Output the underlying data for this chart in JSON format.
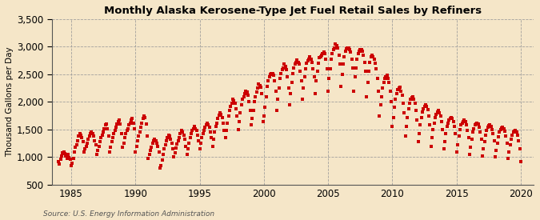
{
  "title": "Monthly Alaska Kerosene-Type Jet Fuel Retail Sales by Refiners",
  "ylabel": "Thousand Gallons per Day",
  "source": "Source: U.S. Energy Information Administration",
  "background_color": "#f5e6c8",
  "plot_bg_color": "#f5e6c8",
  "marker_color": "#cc0000",
  "marker": "s",
  "marker_size": 3.5,
  "xlim": [
    1983.5,
    2021.0
  ],
  "ylim": [
    500,
    3500
  ],
  "yticks": [
    500,
    1000,
    1500,
    2000,
    2500,
    3000,
    3500
  ],
  "ytick_labels": [
    "500",
    "1,000",
    "1,500",
    "2,000",
    "2,500",
    "3,000",
    "3,500"
  ],
  "xticks": [
    1985,
    1990,
    1995,
    2000,
    2005,
    2010,
    2015,
    2020
  ],
  "data": [
    [
      1984.0,
      920
    ],
    [
      1984.08,
      870
    ],
    [
      1984.17,
      960
    ],
    [
      1984.25,
      1020
    ],
    [
      1984.33,
      1080
    ],
    [
      1984.42,
      1100
    ],
    [
      1984.5,
      1060
    ],
    [
      1984.58,
      1020
    ],
    [
      1984.67,
      980
    ],
    [
      1984.75,
      1050
    ],
    [
      1984.83,
      990
    ],
    [
      1984.92,
      960
    ],
    [
      1985.0,
      840
    ],
    [
      1985.08,
      890
    ],
    [
      1985.17,
      980
    ],
    [
      1985.25,
      1100
    ],
    [
      1985.33,
      1180
    ],
    [
      1985.42,
      1220
    ],
    [
      1985.5,
      1300
    ],
    [
      1985.58,
      1380
    ],
    [
      1985.67,
      1420
    ],
    [
      1985.75,
      1400
    ],
    [
      1985.83,
      1350
    ],
    [
      1985.92,
      1280
    ],
    [
      1986.0,
      1100
    ],
    [
      1986.08,
      1150
    ],
    [
      1986.17,
      1200
    ],
    [
      1986.25,
      1250
    ],
    [
      1986.33,
      1320
    ],
    [
      1986.42,
      1380
    ],
    [
      1986.5,
      1430
    ],
    [
      1986.58,
      1460
    ],
    [
      1986.67,
      1420
    ],
    [
      1986.75,
      1380
    ],
    [
      1986.83,
      1300
    ],
    [
      1986.92,
      1220
    ],
    [
      1987.0,
      1050
    ],
    [
      1987.08,
      1120
    ],
    [
      1987.17,
      1200
    ],
    [
      1987.25,
      1280
    ],
    [
      1987.33,
      1350
    ],
    [
      1987.42,
      1400
    ],
    [
      1987.5,
      1450
    ],
    [
      1987.58,
      1520
    ],
    [
      1987.67,
      1580
    ],
    [
      1987.75,
      1600
    ],
    [
      1987.83,
      1520
    ],
    [
      1987.92,
      1380
    ],
    [
      1988.0,
      1100
    ],
    [
      1988.08,
      1180
    ],
    [
      1988.17,
      1280
    ],
    [
      1988.25,
      1350
    ],
    [
      1988.33,
      1420
    ],
    [
      1988.42,
      1480
    ],
    [
      1988.5,
      1540
    ],
    [
      1988.58,
      1600
    ],
    [
      1988.67,
      1650
    ],
    [
      1988.75,
      1680
    ],
    [
      1988.83,
      1600
    ],
    [
      1988.92,
      1420
    ],
    [
      1989.0,
      1180
    ],
    [
      1989.08,
      1250
    ],
    [
      1989.17,
      1350
    ],
    [
      1989.25,
      1420
    ],
    [
      1989.33,
      1480
    ],
    [
      1989.42,
      1520
    ],
    [
      1989.5,
      1580
    ],
    [
      1989.58,
      1620
    ],
    [
      1989.67,
      1680
    ],
    [
      1989.75,
      1700
    ],
    [
      1989.83,
      1620
    ],
    [
      1989.92,
      1520
    ],
    [
      1990.0,
      1100
    ],
    [
      1990.08,
      1200
    ],
    [
      1990.17,
      1300
    ],
    [
      1990.25,
      1380
    ],
    [
      1990.33,
      1460
    ],
    [
      1990.42,
      1540
    ],
    [
      1990.5,
      1620
    ],
    [
      1990.58,
      1700
    ],
    [
      1990.67,
      1750
    ],
    [
      1990.75,
      1720
    ],
    [
      1990.83,
      1600
    ],
    [
      1990.92,
      1380
    ],
    [
      1991.0,
      980
    ],
    [
      1991.08,
      1050
    ],
    [
      1991.17,
      1120
    ],
    [
      1991.25,
      1180
    ],
    [
      1991.33,
      1250
    ],
    [
      1991.42,
      1300
    ],
    [
      1991.5,
      1320
    ],
    [
      1991.58,
      1300
    ],
    [
      1991.67,
      1250
    ],
    [
      1991.75,
      1200
    ],
    [
      1991.83,
      1100
    ],
    [
      1991.92,
      800
    ],
    [
      1992.0,
      850
    ],
    [
      1992.08,
      950
    ],
    [
      1992.17,
      1050
    ],
    [
      1992.25,
      1150
    ],
    [
      1992.33,
      1220
    ],
    [
      1992.42,
      1300
    ],
    [
      1992.5,
      1350
    ],
    [
      1992.58,
      1400
    ],
    [
      1992.67,
      1380
    ],
    [
      1992.75,
      1320
    ],
    [
      1992.83,
      1250
    ],
    [
      1992.92,
      1150
    ],
    [
      1993.0,
      1000
    ],
    [
      1993.08,
      1080
    ],
    [
      1993.17,
      1160
    ],
    [
      1993.25,
      1240
    ],
    [
      1993.33,
      1300
    ],
    [
      1993.42,
      1360
    ],
    [
      1993.5,
      1420
    ],
    [
      1993.58,
      1480
    ],
    [
      1993.67,
      1450
    ],
    [
      1993.75,
      1400
    ],
    [
      1993.83,
      1320
    ],
    [
      1993.92,
      1200
    ],
    [
      1994.0,
      1050
    ],
    [
      1994.08,
      1150
    ],
    [
      1994.17,
      1250
    ],
    [
      1994.25,
      1350
    ],
    [
      1994.33,
      1420
    ],
    [
      1994.42,
      1480
    ],
    [
      1994.5,
      1520
    ],
    [
      1994.58,
      1560
    ],
    [
      1994.67,
      1520
    ],
    [
      1994.75,
      1480
    ],
    [
      1994.83,
      1400
    ],
    [
      1994.92,
      1300
    ],
    [
      1995.0,
      1150
    ],
    [
      1995.08,
      1250
    ],
    [
      1995.17,
      1350
    ],
    [
      1995.25,
      1420
    ],
    [
      1995.33,
      1480
    ],
    [
      1995.42,
      1540
    ],
    [
      1995.5,
      1580
    ],
    [
      1995.58,
      1620
    ],
    [
      1995.67,
      1580
    ],
    [
      1995.75,
      1540
    ],
    [
      1995.83,
      1460
    ],
    [
      1995.92,
      1350
    ],
    [
      1996.0,
      1200
    ],
    [
      1996.08,
      1320
    ],
    [
      1996.17,
      1450
    ],
    [
      1996.25,
      1550
    ],
    [
      1996.33,
      1620
    ],
    [
      1996.42,
      1700
    ],
    [
      1996.5,
      1760
    ],
    [
      1996.58,
      1800
    ],
    [
      1996.67,
      1780
    ],
    [
      1996.75,
      1720
    ],
    [
      1996.83,
      1620
    ],
    [
      1996.92,
      1480
    ],
    [
      1997.0,
      1350
    ],
    [
      1997.08,
      1480
    ],
    [
      1997.17,
      1620
    ],
    [
      1997.25,
      1750
    ],
    [
      1997.33,
      1850
    ],
    [
      1997.42,
      1920
    ],
    [
      1997.5,
      1980
    ],
    [
      1997.58,
      2050
    ],
    [
      1997.67,
      2020
    ],
    [
      1997.75,
      1980
    ],
    [
      1997.83,
      1880
    ],
    [
      1997.92,
      1750
    ],
    [
      1998.0,
      1500
    ],
    [
      1998.08,
      1650
    ],
    [
      1998.17,
      1800
    ],
    [
      1998.25,
      1950
    ],
    [
      1998.33,
      2050
    ],
    [
      1998.42,
      2100
    ],
    [
      1998.5,
      2150
    ],
    [
      1998.58,
      2200
    ],
    [
      1998.67,
      2180
    ],
    [
      1998.75,
      2120
    ],
    [
      1998.83,
      2000
    ],
    [
      1998.92,
      1850
    ],
    [
      1999.0,
      1580
    ],
    [
      1999.08,
      1700
    ],
    [
      1999.17,
      1850
    ],
    [
      1999.25,
      2000
    ],
    [
      1999.33,
      2100
    ],
    [
      1999.42,
      2180
    ],
    [
      1999.5,
      2250
    ],
    [
      1999.58,
      2320
    ],
    [
      1999.67,
      2300
    ],
    [
      1999.75,
      2260
    ],
    [
      1999.83,
      2150
    ],
    [
      1999.92,
      1650
    ],
    [
      2000.0,
      1750
    ],
    [
      2000.08,
      1900
    ],
    [
      2000.17,
      2100
    ],
    [
      2000.25,
      2280
    ],
    [
      2000.33,
      2380
    ],
    [
      2000.42,
      2450
    ],
    [
      2000.5,
      2500
    ],
    [
      2000.58,
      2520
    ],
    [
      2000.67,
      2520
    ],
    [
      2000.75,
      2480
    ],
    [
      2000.83,
      2380
    ],
    [
      2000.92,
      2200
    ],
    [
      2001.0,
      1850
    ],
    [
      2001.08,
      2050
    ],
    [
      2001.17,
      2250
    ],
    [
      2001.25,
      2420
    ],
    [
      2001.33,
      2520
    ],
    [
      2001.42,
      2580
    ],
    [
      2001.5,
      2620
    ],
    [
      2001.58,
      2680
    ],
    [
      2001.67,
      2650
    ],
    [
      2001.75,
      2580
    ],
    [
      2001.83,
      2450
    ],
    [
      2001.92,
      2250
    ],
    [
      2002.0,
      1950
    ],
    [
      2002.08,
      2150
    ],
    [
      2002.17,
      2350
    ],
    [
      2002.25,
      2520
    ],
    [
      2002.33,
      2620
    ],
    [
      2002.42,
      2680
    ],
    [
      2002.5,
      2720
    ],
    [
      2002.58,
      2760
    ],
    [
      2002.67,
      2720
    ],
    [
      2002.75,
      2680
    ],
    [
      2002.83,
      2550
    ],
    [
      2002.92,
      2380
    ],
    [
      2003.0,
      2050
    ],
    [
      2003.08,
      2250
    ],
    [
      2003.17,
      2450
    ],
    [
      2003.25,
      2600
    ],
    [
      2003.33,
      2700
    ],
    [
      2003.42,
      2750
    ],
    [
      2003.5,
      2780
    ],
    [
      2003.58,
      2820
    ],
    [
      2003.67,
      2780
    ],
    [
      2003.75,
      2720
    ],
    [
      2003.83,
      2600
    ],
    [
      2003.92,
      2450
    ],
    [
      2004.0,
      2150
    ],
    [
      2004.08,
      2380
    ],
    [
      2004.17,
      2550
    ],
    [
      2004.25,
      2700
    ],
    [
      2004.33,
      2800
    ],
    [
      2004.42,
      2820
    ],
    [
      2004.5,
      2850
    ],
    [
      2004.58,
      2880
    ],
    [
      2004.67,
      2900
    ],
    [
      2004.75,
      2880
    ],
    [
      2004.83,
      2780
    ],
    [
      2004.92,
      2600
    ],
    [
      2005.0,
      2200
    ],
    [
      2005.08,
      2420
    ],
    [
      2005.17,
      2600
    ],
    [
      2005.25,
      2780
    ],
    [
      2005.33,
      2880
    ],
    [
      2005.42,
      2950
    ],
    [
      2005.5,
      2980
    ],
    [
      2005.58,
      3050
    ],
    [
      2005.67,
      3020
    ],
    [
      2005.75,
      2980
    ],
    [
      2005.83,
      2850
    ],
    [
      2005.92,
      2680
    ],
    [
      2006.0,
      2280
    ],
    [
      2006.08,
      2500
    ],
    [
      2006.17,
      2680
    ],
    [
      2006.25,
      2820
    ],
    [
      2006.33,
      2920
    ],
    [
      2006.42,
      2960
    ],
    [
      2006.5,
      2980
    ],
    [
      2006.58,
      2980
    ],
    [
      2006.67,
      2950
    ],
    [
      2006.75,
      2900
    ],
    [
      2006.83,
      2780
    ],
    [
      2006.92,
      2620
    ],
    [
      2007.0,
      2200
    ],
    [
      2007.08,
      2450
    ],
    [
      2007.17,
      2620
    ],
    [
      2007.25,
      2780
    ],
    [
      2007.33,
      2880
    ],
    [
      2007.42,
      2920
    ],
    [
      2007.5,
      2950
    ],
    [
      2007.58,
      2950
    ],
    [
      2007.67,
      2920
    ],
    [
      2007.75,
      2850
    ],
    [
      2007.83,
      2720
    ],
    [
      2007.92,
      2550
    ],
    [
      2008.0,
      2100
    ],
    [
      2008.08,
      2350
    ],
    [
      2008.17,
      2550
    ],
    [
      2008.25,
      2720
    ],
    [
      2008.33,
      2820
    ],
    [
      2008.42,
      2850
    ],
    [
      2008.5,
      2820
    ],
    [
      2008.58,
      2780
    ],
    [
      2008.67,
      2700
    ],
    [
      2008.75,
      2600
    ],
    [
      2008.83,
      2420
    ],
    [
      2008.92,
      2200
    ],
    [
      2009.0,
      1750
    ],
    [
      2009.08,
      1950
    ],
    [
      2009.17,
      2100
    ],
    [
      2009.25,
      2250
    ],
    [
      2009.33,
      2350
    ],
    [
      2009.42,
      2420
    ],
    [
      2009.5,
      2450
    ],
    [
      2009.58,
      2480
    ],
    [
      2009.67,
      2420
    ],
    [
      2009.75,
      2350
    ],
    [
      2009.83,
      2200
    ],
    [
      2009.92,
      2000
    ],
    [
      2010.0,
      1550
    ],
    [
      2010.08,
      1720
    ],
    [
      2010.17,
      1900
    ],
    [
      2010.25,
      2050
    ],
    [
      2010.33,
      2150
    ],
    [
      2010.42,
      2220
    ],
    [
      2010.5,
      2250
    ],
    [
      2010.58,
      2260
    ],
    [
      2010.67,
      2200
    ],
    [
      2010.75,
      2120
    ],
    [
      2010.83,
      1980
    ],
    [
      2010.92,
      1800
    ],
    [
      2011.0,
      1380
    ],
    [
      2011.08,
      1550
    ],
    [
      2011.17,
      1720
    ],
    [
      2011.25,
      1880
    ],
    [
      2011.33,
      1980
    ],
    [
      2011.42,
      2050
    ],
    [
      2011.5,
      2080
    ],
    [
      2011.58,
      2100
    ],
    [
      2011.67,
      2050
    ],
    [
      2011.75,
      1980
    ],
    [
      2011.83,
      1850
    ],
    [
      2011.92,
      1680
    ],
    [
      2012.0,
      1280
    ],
    [
      2012.08,
      1420
    ],
    [
      2012.17,
      1580
    ],
    [
      2012.25,
      1720
    ],
    [
      2012.33,
      1820
    ],
    [
      2012.42,
      1880
    ],
    [
      2012.5,
      1920
    ],
    [
      2012.58,
      1950
    ],
    [
      2012.67,
      1920
    ],
    [
      2012.75,
      1860
    ],
    [
      2012.83,
      1750
    ],
    [
      2012.92,
      1580
    ],
    [
      2013.0,
      1200
    ],
    [
      2013.08,
      1350
    ],
    [
      2013.17,
      1500
    ],
    [
      2013.25,
      1620
    ],
    [
      2013.33,
      1720
    ],
    [
      2013.42,
      1780
    ],
    [
      2013.5,
      1820
    ],
    [
      2013.58,
      1850
    ],
    [
      2013.67,
      1800
    ],
    [
      2013.75,
      1750
    ],
    [
      2013.83,
      1650
    ],
    [
      2013.92,
      1500
    ],
    [
      2014.0,
      1150
    ],
    [
      2014.08,
      1280
    ],
    [
      2014.17,
      1420
    ],
    [
      2014.25,
      1550
    ],
    [
      2014.33,
      1620
    ],
    [
      2014.42,
      1680
    ],
    [
      2014.5,
      1700
    ],
    [
      2014.58,
      1720
    ],
    [
      2014.67,
      1700
    ],
    [
      2014.75,
      1650
    ],
    [
      2014.83,
      1550
    ],
    [
      2014.92,
      1420
    ],
    [
      2015.0,
      1100
    ],
    [
      2015.08,
      1220
    ],
    [
      2015.17,
      1380
    ],
    [
      2015.25,
      1500
    ],
    [
      2015.33,
      1580
    ],
    [
      2015.42,
      1620
    ],
    [
      2015.5,
      1650
    ],
    [
      2015.58,
      1680
    ],
    [
      2015.67,
      1650
    ],
    [
      2015.75,
      1580
    ],
    [
      2015.83,
      1480
    ],
    [
      2015.92,
      1350
    ],
    [
      2016.0,
      1050
    ],
    [
      2016.08,
      1180
    ],
    [
      2016.17,
      1320
    ],
    [
      2016.25,
      1450
    ],
    [
      2016.33,
      1520
    ],
    [
      2016.42,
      1580
    ],
    [
      2016.5,
      1600
    ],
    [
      2016.58,
      1620
    ],
    [
      2016.67,
      1600
    ],
    [
      2016.75,
      1540
    ],
    [
      2016.83,
      1450
    ],
    [
      2016.92,
      1320
    ],
    [
      2017.0,
      1020
    ],
    [
      2017.08,
      1150
    ],
    [
      2017.17,
      1280
    ],
    [
      2017.25,
      1400
    ],
    [
      2017.33,
      1480
    ],
    [
      2017.42,
      1540
    ],
    [
      2017.5,
      1570
    ],
    [
      2017.58,
      1580
    ],
    [
      2017.67,
      1550
    ],
    [
      2017.75,
      1500
    ],
    [
      2017.83,
      1420
    ],
    [
      2017.92,
      1300
    ],
    [
      2018.0,
      1000
    ],
    [
      2018.08,
      1120
    ],
    [
      2018.17,
      1250
    ],
    [
      2018.25,
      1370
    ],
    [
      2018.33,
      1450
    ],
    [
      2018.42,
      1500
    ],
    [
      2018.5,
      1530
    ],
    [
      2018.58,
      1540
    ],
    [
      2018.67,
      1520
    ],
    [
      2018.75,
      1470
    ],
    [
      2018.83,
      1380
    ],
    [
      2018.92,
      1250
    ],
    [
      2019.0,
      980
    ],
    [
      2019.08,
      1100
    ],
    [
      2019.17,
      1220
    ],
    [
      2019.25,
      1330
    ],
    [
      2019.33,
      1400
    ],
    [
      2019.42,
      1450
    ],
    [
      2019.5,
      1470
    ],
    [
      2019.58,
      1480
    ],
    [
      2019.67,
      1450
    ],
    [
      2019.75,
      1400
    ],
    [
      2019.83,
      1300
    ],
    [
      2019.92,
      1150
    ],
    [
      2020.0,
      920
    ]
  ]
}
